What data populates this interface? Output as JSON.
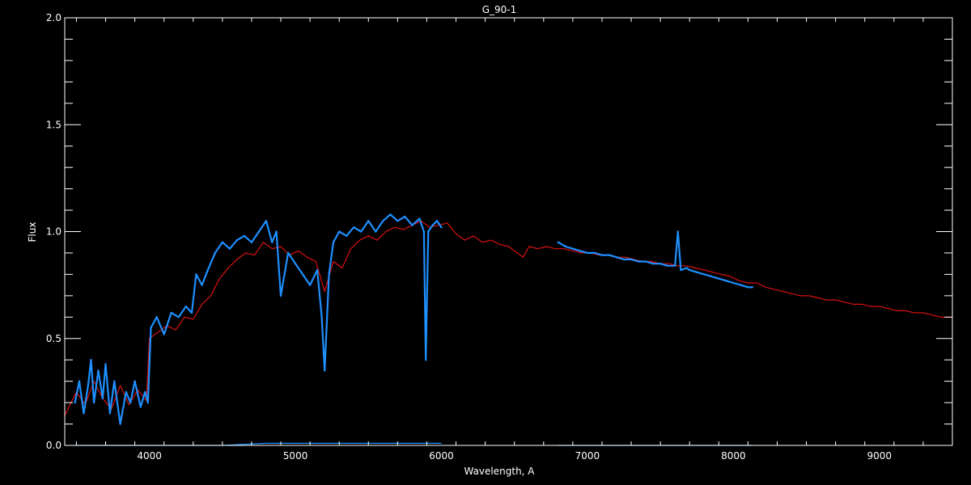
{
  "chart_data": {
    "type": "line",
    "title": "G_90-1",
    "xlabel": "Wavelength, A",
    "ylabel": "Flux",
    "xlim": [
      3420,
      9500
    ],
    "ylim": [
      0.0,
      2.0
    ],
    "x_ticks": [
      4000,
      5000,
      6000,
      7000,
      8000,
      9000
    ],
    "x_tick_labels": [
      "4000",
      "5000",
      "6000",
      "7000",
      "8000",
      "9000"
    ],
    "y_ticks": [
      0.0,
      0.5,
      1.0,
      1.5,
      2.0
    ],
    "y_tick_labels": [
      "0.0",
      "0.5",
      "1.0",
      "1.5",
      "2.0"
    ],
    "grid": false,
    "background": "#000000",
    "axis_color": "#ffffff",
    "series": [
      {
        "role": "model",
        "color": "#dd1111",
        "x": [
          3420,
          3500,
          3560,
          3620,
          3680,
          3740,
          3800,
          3860,
          3920,
          3980,
          4000,
          4060,
          4120,
          4180,
          4240,
          4300,
          4360,
          4420,
          4480,
          4540,
          4600,
          4660,
          4720,
          4780,
          4840,
          4900,
          4960,
          5020,
          5080,
          5140,
          5200,
          5260,
          5320,
          5380,
          5440,
          5500,
          5560,
          5620,
          5680,
          5740,
          5800,
          5860,
          5920,
          5980,
          6040,
          6100,
          6160,
          6220,
          6280,
          6340,
          6400,
          6460,
          6520,
          6560,
          6600,
          6660,
          6720,
          6780,
          6840,
          6900,
          6960,
          7020,
          7080,
          7140,
          7200,
          7260,
          7320,
          7380,
          7440,
          7500,
          7560,
          7620,
          7680,
          7740,
          7800,
          7860,
          7920,
          7980,
          8040,
          8100,
          8160,
          8220,
          8280,
          8340,
          8400,
          8460,
          8520,
          8580,
          8640,
          8700,
          8760,
          8820,
          8880,
          8940,
          9000,
          9060,
          9120,
          9180,
          9240,
          9300,
          9360,
          9420,
          9500
        ],
        "y": [
          0.14,
          0.25,
          0.19,
          0.3,
          0.22,
          0.17,
          0.28,
          0.19,
          0.26,
          0.21,
          0.5,
          0.53,
          0.56,
          0.54,
          0.6,
          0.59,
          0.66,
          0.7,
          0.78,
          0.83,
          0.87,
          0.9,
          0.89,
          0.95,
          0.92,
          0.93,
          0.89,
          0.91,
          0.88,
          0.86,
          0.72,
          0.86,
          0.83,
          0.92,
          0.96,
          0.98,
          0.96,
          1.0,
          1.02,
          1.01,
          1.03,
          1.05,
          1.02,
          1.03,
          1.04,
          0.99,
          0.96,
          0.98,
          0.95,
          0.96,
          0.94,
          0.93,
          0.9,
          0.88,
          0.93,
          0.92,
          0.93,
          0.92,
          0.92,
          0.91,
          0.9,
          0.9,
          0.89,
          0.89,
          0.88,
          0.88,
          0.87,
          0.86,
          0.86,
          0.85,
          0.85,
          0.84,
          0.84,
          0.83,
          0.82,
          0.81,
          0.8,
          0.79,
          0.77,
          0.76,
          0.76,
          0.74,
          0.73,
          0.72,
          0.71,
          0.7,
          0.7,
          0.69,
          0.68,
          0.68,
          0.67,
          0.66,
          0.66,
          0.65,
          0.65,
          0.64,
          0.63,
          0.63,
          0.62,
          0.62,
          0.61,
          0.6,
          0.6
        ]
      },
      {
        "role": "observed-blue-arm",
        "color": "#1e90ff",
        "x": [
          3490,
          3520,
          3550,
          3580,
          3600,
          3620,
          3650,
          3680,
          3700,
          3730,
          3760,
          3800,
          3840,
          3870,
          3900,
          3940,
          3970,
          3990,
          4010,
          4050,
          4100,
          4150,
          4200,
          4250,
          4290,
          4320,
          4360,
          4400,
          4450,
          4500,
          4550,
          4600,
          4650,
          4700,
          4750,
          4800,
          4840,
          4870,
          4900,
          4950,
          5000,
          5050,
          5100,
          5150,
          5180,
          5200,
          5230,
          5260,
          5300,
          5350,
          5400,
          5450,
          5500,
          5550,
          5600,
          5650,
          5700,
          5750,
          5800,
          5850,
          5880,
          5893,
          5910,
          5940,
          5970,
          6000
        ],
        "y": [
          0.2,
          0.3,
          0.15,
          0.28,
          0.4,
          0.2,
          0.35,
          0.22,
          0.38,
          0.15,
          0.3,
          0.1,
          0.25,
          0.2,
          0.3,
          0.18,
          0.25,
          0.2,
          0.55,
          0.6,
          0.52,
          0.62,
          0.6,
          0.65,
          0.62,
          0.8,
          0.75,
          0.82,
          0.9,
          0.95,
          0.92,
          0.96,
          0.98,
          0.95,
          1.0,
          1.05,
          0.95,
          1.0,
          0.7,
          0.9,
          0.85,
          0.8,
          0.75,
          0.82,
          0.6,
          0.35,
          0.8,
          0.95,
          1.0,
          0.98,
          1.02,
          1.0,
          1.05,
          1.0,
          1.05,
          1.08,
          1.05,
          1.07,
          1.03,
          1.06,
          1.0,
          0.4,
          1.0,
          1.03,
          1.05,
          1.02
        ]
      },
      {
        "role": "observed-red-arm",
        "color": "#1e90ff",
        "x": [
          6800,
          6850,
          6900,
          6950,
          7000,
          7050,
          7100,
          7150,
          7200,
          7250,
          7300,
          7350,
          7400,
          7450,
          7500,
          7550,
          7600,
          7620,
          7640,
          7680,
          7700,
          7750,
          7800,
          7850,
          7900,
          7950,
          8000,
          8050,
          8100,
          8130
        ],
        "y": [
          0.95,
          0.93,
          0.92,
          0.91,
          0.9,
          0.9,
          0.89,
          0.89,
          0.88,
          0.87,
          0.87,
          0.86,
          0.86,
          0.85,
          0.85,
          0.84,
          0.84,
          1.0,
          0.82,
          0.83,
          0.82,
          0.81,
          0.8,
          0.79,
          0.78,
          0.77,
          0.76,
          0.75,
          0.74,
          0.74
        ]
      },
      {
        "role": "error-blue-arm",
        "color": "#1e90ff",
        "x": [
          3490,
          4000,
          4500,
          4800,
          4900,
          5000,
          5500,
          6000
        ],
        "y": [
          0.0,
          0.0,
          0.0,
          0.01,
          0.01,
          0.01,
          0.01,
          0.01
        ]
      },
      {
        "role": "error-red-arm",
        "color": "#1e90ff",
        "x": [
          6800,
          7300,
          7600,
          7700,
          8130
        ],
        "y": [
          0.0,
          0.0,
          0.0,
          0.0,
          0.0
        ]
      }
    ]
  }
}
